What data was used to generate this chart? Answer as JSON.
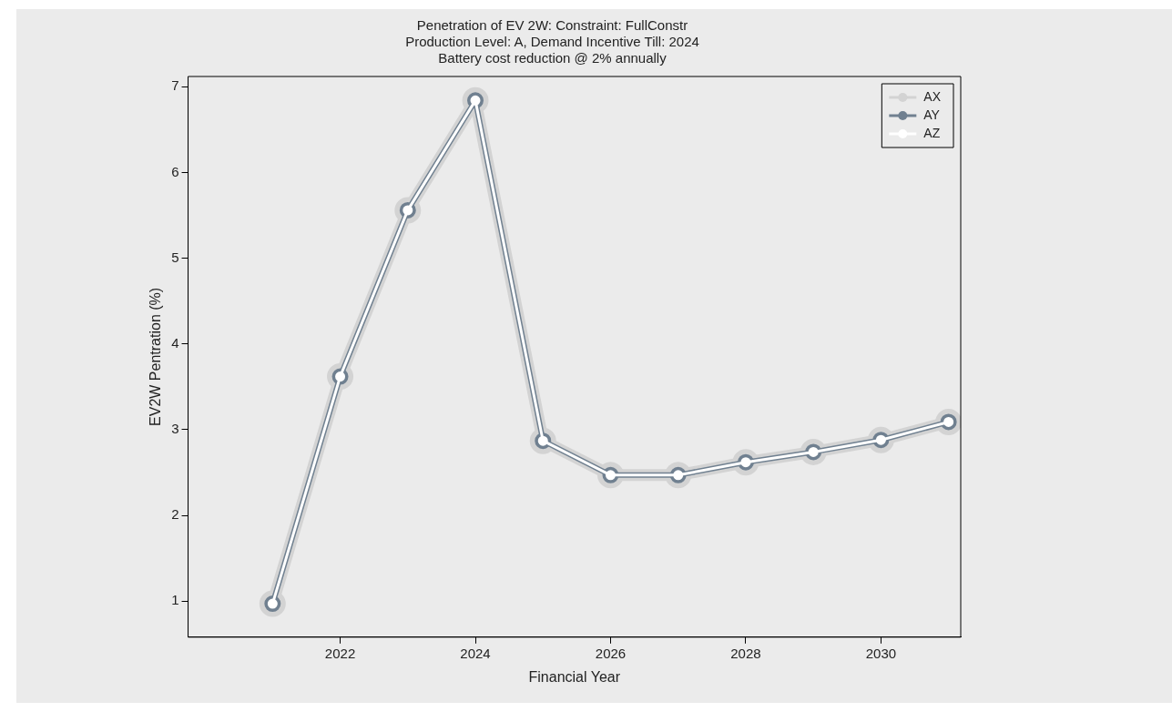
{
  "chart_data": {
    "type": "line",
    "title": "Penetration of EV 2W: Constraint: FullConstr",
    "subtitle": "Production Level: A, Demand Incentive Till: 2024\nBattery cost reduction @ 2% annually",
    "xlabel": "Financial Year",
    "ylabel": "EV2W Pentration (%)",
    "x": [
      2021,
      2022,
      2023,
      2024,
      2025,
      2026,
      2027,
      2028,
      2029,
      2030,
      2031
    ],
    "series": [
      {
        "name": "AX",
        "color": "#d3d3d3",
        "values": [
          0.97,
          3.62,
          5.56,
          6.84,
          2.87,
          2.47,
          2.47,
          2.62,
          2.74,
          2.88,
          3.09
        ]
      },
      {
        "name": "AY",
        "color": "#708090",
        "values": [
          0.97,
          3.62,
          5.56,
          6.84,
          2.87,
          2.47,
          2.47,
          2.62,
          2.74,
          2.88,
          3.09
        ]
      },
      {
        "name": "AZ",
        "color": "#ffffff",
        "values": [
          0.97,
          3.62,
          5.56,
          6.84,
          2.87,
          2.47,
          2.47,
          2.62,
          2.74,
          2.88,
          3.09
        ]
      }
    ],
    "xlim": [
      2019.75,
      2031.18
    ],
    "xticks": [
      2022,
      2024,
      2026,
      2028,
      2030
    ],
    "ylim": [
      0.58,
      7.12
    ],
    "yticks": [
      1,
      2,
      3,
      4,
      5,
      6,
      7
    ],
    "grid": false,
    "legend": "top right",
    "marker": "circle",
    "line_style": "solid"
  }
}
